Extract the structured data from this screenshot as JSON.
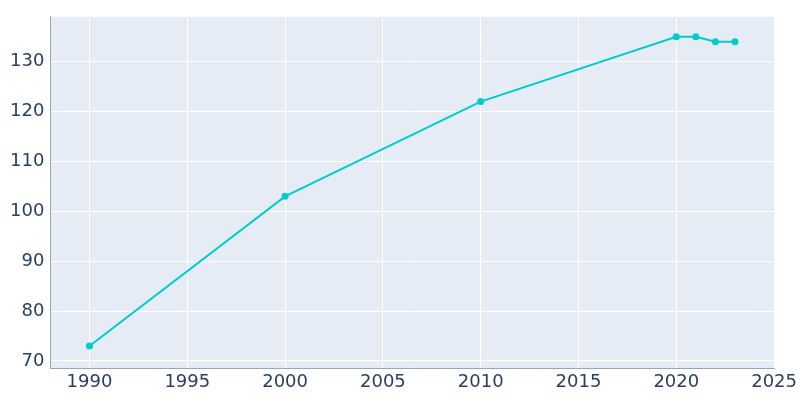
{
  "chart_data": {
    "type": "line",
    "x": [
      1990,
      2000,
      2010,
      2020,
      2021,
      2022,
      2023
    ],
    "values": [
      73,
      103,
      122,
      135,
      135,
      134,
      134
    ],
    "color": "#00cccc",
    "marker": "circle",
    "xlim": [
      1988,
      2025
    ],
    "xticks": [
      1990,
      1995,
      2000,
      2005,
      2010,
      2015,
      2020,
      2025
    ],
    "ylim": [
      68.5,
      139
    ],
    "yticks": [
      70,
      80,
      90,
      100,
      110,
      120,
      130
    ],
    "grid": true
  }
}
